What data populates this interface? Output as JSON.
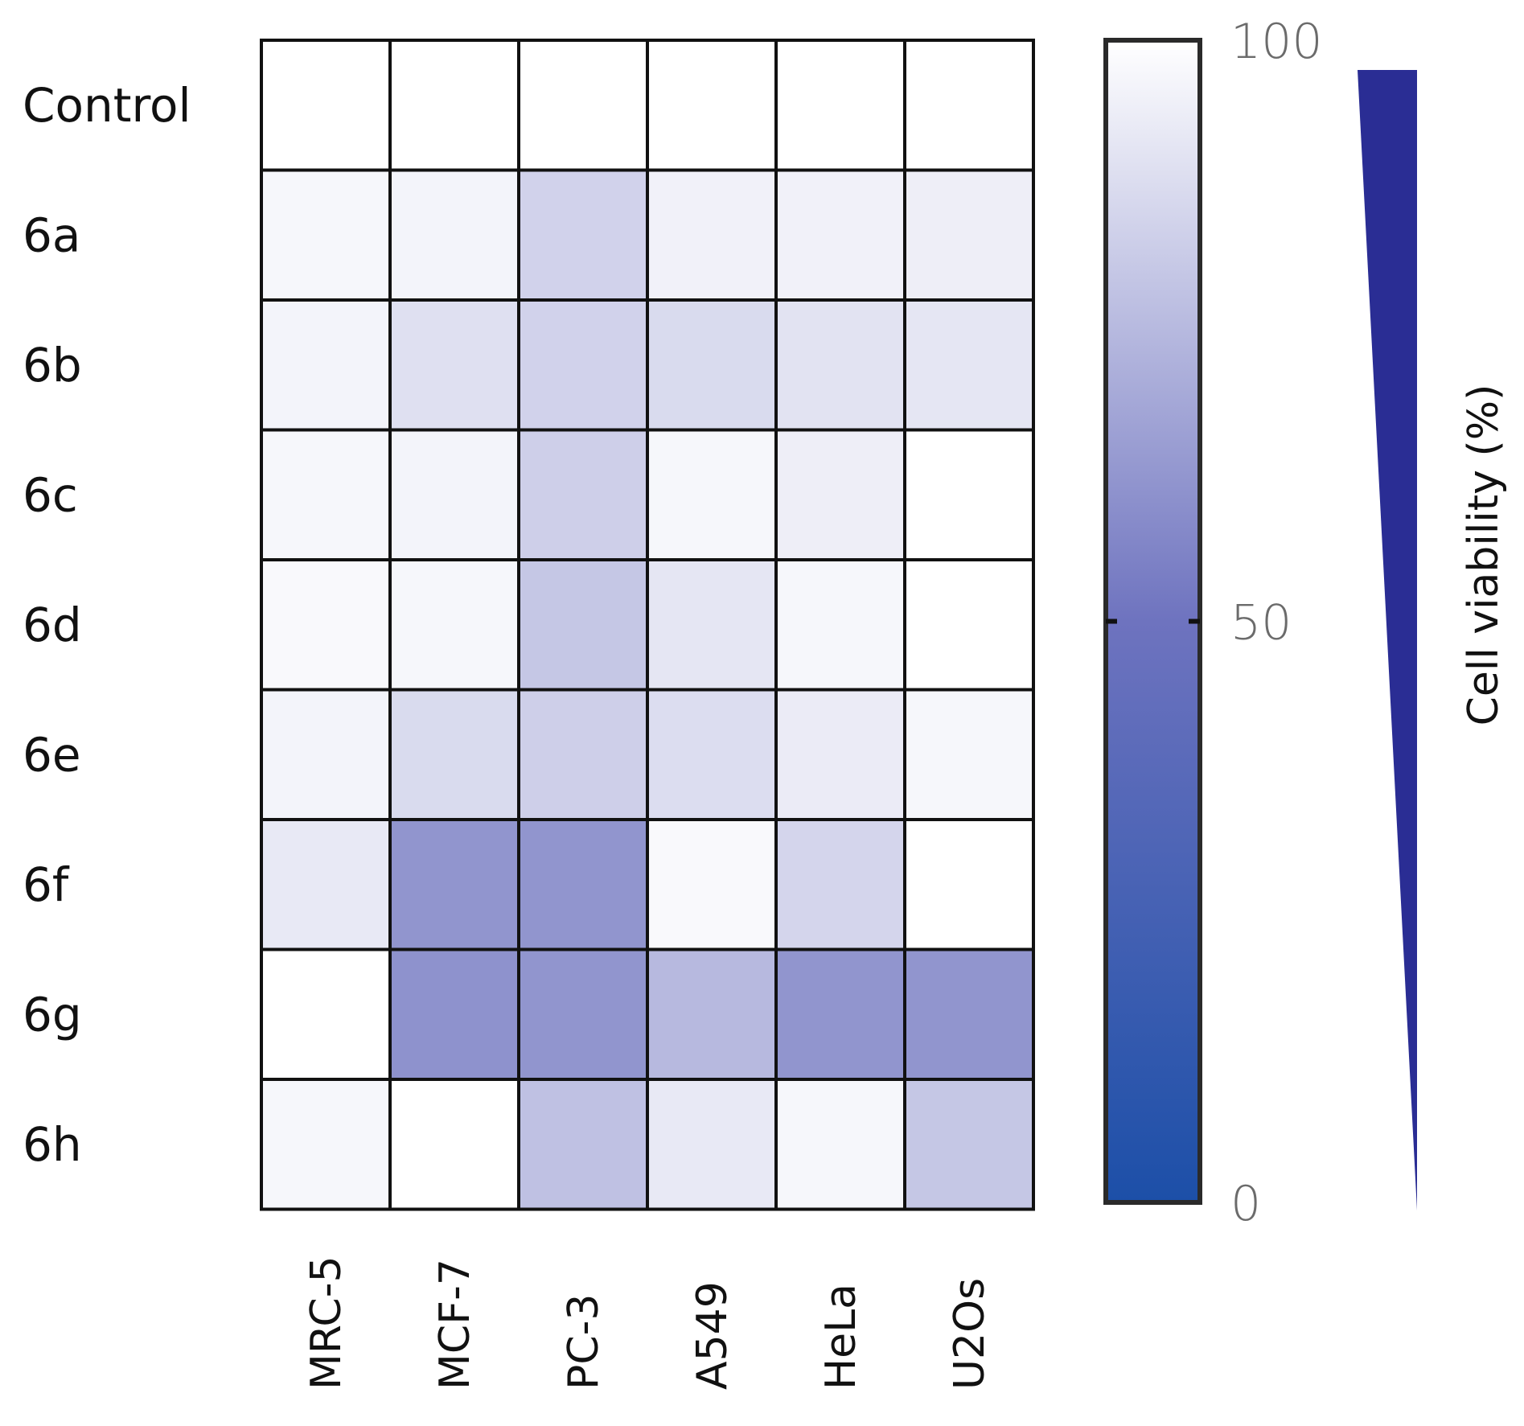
{
  "chart_data": {
    "type": "heatmap",
    "title": "",
    "rows": [
      "Control",
      "6a",
      "6b",
      "6c",
      "6d",
      "6e",
      "6f",
      "6g",
      "6h"
    ],
    "columns": [
      "MRC-5",
      "MCF-7",
      "PC-3",
      "A549",
      "HeLa",
      "U2Os"
    ],
    "values": [
      [
        100,
        100,
        100,
        100,
        100,
        100
      ],
      [
        97,
        96,
        84,
        95,
        95,
        94
      ],
      [
        96,
        89,
        84,
        87,
        90,
        91
      ],
      [
        97,
        96,
        83,
        97,
        94,
        100
      ],
      [
        98,
        97,
        80,
        91,
        97,
        100
      ],
      [
        96,
        87,
        83,
        88,
        93,
        97
      ],
      [
        92,
        62,
        62,
        98,
        85,
        100
      ],
      [
        100,
        61,
        62,
        75,
        62,
        62
      ],
      [
        97,
        100,
        78,
        92,
        97,
        80
      ]
    ],
    "colorbar": {
      "label": "Cell viability (%)",
      "range": [
        0,
        100
      ],
      "ticks": [
        0,
        50,
        100
      ],
      "tick_labels": [
        "0",
        "50",
        "100"
      ],
      "colors": {
        "low": "#1c4fa8",
        "mid": "#6e73bf",
        "high": "#ffffff"
      }
    },
    "legend_wedge_color": "#2a2d94",
    "grid_color": "#111111"
  }
}
